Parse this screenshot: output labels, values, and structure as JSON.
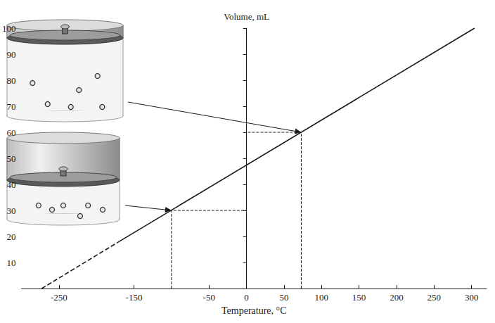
{
  "chart_data": {
    "type": "line",
    "x_label": "Temperature, °C",
    "y_label": "Volume, mL",
    "color": "#1a1a1a",
    "series": [
      {
        "line_style": "dashed",
        "x": [
          -273,
          -170
        ],
        "values": [
          0,
          18
        ]
      },
      {
        "line_style": "solid",
        "x": [
          -170,
          304
        ],
        "values": [
          18,
          100
        ]
      }
    ],
    "reference_points": {
      "x": [
        -100,
        73
      ],
      "values": [
        30,
        60
      ]
    },
    "xlim": [
      -300,
      320
    ],
    "xticks": [
      -250,
      -150,
      -50,
      0,
      50,
      100,
      150,
      200,
      250,
      300
    ],
    "ylim": [
      0,
      100
    ],
    "yticks": [
      10,
      20,
      30,
      40,
      50,
      60,
      70,
      80,
      90,
      100
    ],
    "grid": false
  }
}
